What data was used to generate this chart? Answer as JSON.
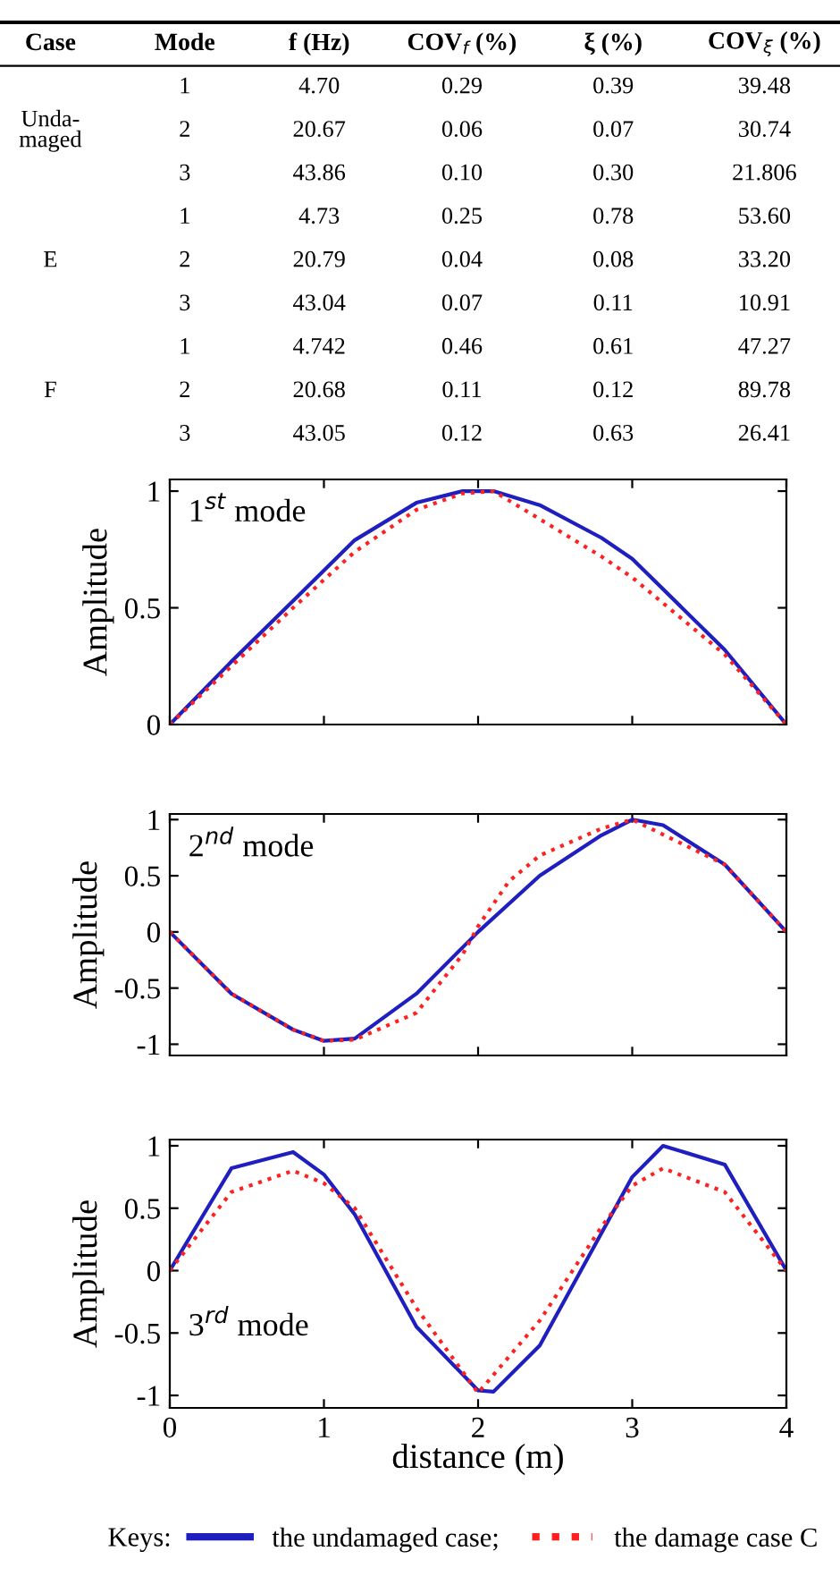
{
  "chart_data": [
    {
      "type": "other",
      "categories": [
        "Case",
        "Mode",
        "f (Hz)",
        "COV$_{f}$ (%)",
        "ξ (%)",
        "COV$_{ξ}$ (%)"
      ],
      "cell_labels": [
        [
          null,
          "1",
          "4.70",
          "0.29",
          "0.39",
          "39.48"
        ],
        [
          "Unda-\nmaged",
          "2",
          "20.67",
          "0.06",
          "0.07",
          "30.74"
        ],
        [
          null,
          "3",
          "43.86",
          "0.10",
          "0.30",
          "21.806"
        ],
        [
          null,
          "1",
          "4.73",
          "0.25",
          "0.78",
          "53.60"
        ],
        [
          "E",
          "2",
          "20.79",
          "0.04",
          "0.08",
          "33.20"
        ],
        [
          null,
          "3",
          "43.04",
          "0.07",
          "0.11",
          "10.91"
        ],
        [
          null,
          "1",
          "4.742",
          "0.46",
          "0.61",
          "47.27"
        ],
        [
          "F",
          "2",
          "20.68",
          "0.11",
          "0.12",
          "89.78"
        ],
        [
          null,
          "3",
          "43.05",
          "0.12",
          "0.63",
          "26.41"
        ]
      ]
    },
    {
      "type": "line",
      "ylabel": "Amplitude",
      "annotations": [
        "1$^{st}$ mode"
      ],
      "xlim": [
        0,
        4
      ],
      "xticks": [
        0,
        1,
        2,
        3,
        4
      ],
      "ylim": [
        0,
        1.05
      ],
      "yticks": [
        0,
        0.5,
        1
      ],
      "tick_labels": "y",
      "series": [
        {
          "color": "#1f1fc0",
          "line_style": "solid",
          "x": [
            0,
            0.4,
            0.8,
            1.2,
            1.6,
            1.9,
            2.1,
            2.4,
            2.8,
            3.0,
            3.6,
            4.0
          ],
          "values": [
            0,
            0.27,
            0.53,
            0.79,
            0.95,
            1.0,
            1.0,
            0.94,
            0.8,
            0.71,
            0.32,
            0
          ]
        },
        {
          "color": "#ff2020",
          "line_style": "dotted",
          "x": [
            0,
            0.4,
            0.8,
            1.2,
            1.6,
            1.9,
            2.1,
            2.4,
            2.8,
            3.0,
            3.6,
            4.0
          ],
          "values": [
            0,
            0.25,
            0.5,
            0.74,
            0.92,
            0.99,
            1.0,
            0.88,
            0.72,
            0.63,
            0.3,
            0
          ]
        }
      ]
    },
    {
      "type": "line",
      "ylabel": "Amplitude",
      "annotations": [
        "2$^{nd}$ mode"
      ],
      "xlim": [
        0,
        4
      ],
      "xticks": [
        0,
        1,
        2,
        3,
        4
      ],
      "ylim": [
        -1.1,
        1.05
      ],
      "yticks": [
        -1,
        -0.5,
        0,
        0.5,
        1
      ],
      "tick_labels": "y",
      "series": [
        {
          "color": "#1f1fc0",
          "line_style": "solid",
          "x": [
            0,
            0.4,
            0.8,
            1.0,
            1.2,
            1.6,
            2.0,
            2.4,
            2.8,
            3.0,
            3.2,
            3.6,
            4.0
          ],
          "values": [
            0,
            -0.55,
            -0.87,
            -0.97,
            -0.95,
            -0.55,
            0,
            0.5,
            0.86,
            1.0,
            0.95,
            0.6,
            0
          ]
        },
        {
          "color": "#ff2020",
          "line_style": "dotted",
          "x": [
            0,
            0.4,
            0.8,
            1.0,
            1.2,
            1.6,
            1.9,
            2.0,
            2.2,
            2.4,
            2.8,
            3.0,
            3.6,
            4.0
          ],
          "values": [
            0,
            -0.55,
            -0.87,
            -0.97,
            -0.96,
            -0.72,
            -0.2,
            0.05,
            0.45,
            0.68,
            0.92,
            1.0,
            0.6,
            0
          ]
        }
      ]
    },
    {
      "type": "line",
      "ylabel": "Amplitude",
      "xlabel": "distance (m)",
      "annotations": [
        "3$^{rd}$ mode"
      ],
      "xlim": [
        0,
        4
      ],
      "xticks": [
        0,
        1,
        2,
        3,
        4
      ],
      "ylim": [
        -1.1,
        1.05
      ],
      "yticks": [
        -1,
        -0.5,
        0,
        0.5,
        1
      ],
      "legend": "bottom",
      "legend_title": "Keys:",
      "series": [
        {
          "name": "the undamaged case;",
          "color": "#1f1fc0",
          "line_style": "solid",
          "x": [
            0,
            0.4,
            0.8,
            1.0,
            1.2,
            1.6,
            2.0,
            2.1,
            2.4,
            2.8,
            3.0,
            3.2,
            3.6,
            4.0
          ],
          "values": [
            0,
            0.82,
            0.95,
            0.77,
            0.45,
            -0.45,
            -0.96,
            -0.97,
            -0.6,
            0.3,
            0.75,
            1.0,
            0.85,
            0
          ]
        },
        {
          "name": "the damage case C",
          "color": "#ff2020",
          "line_style": "dotted",
          "x": [
            0,
            0.4,
            0.8,
            1.0,
            1.2,
            1.6,
            2.0,
            2.4,
            2.8,
            3.0,
            3.2,
            3.6,
            4.0
          ],
          "values": [
            0,
            0.63,
            0.8,
            0.7,
            0.5,
            -0.3,
            -0.98,
            -0.4,
            0.35,
            0.68,
            0.82,
            0.63,
            0
          ]
        }
      ]
    }
  ]
}
